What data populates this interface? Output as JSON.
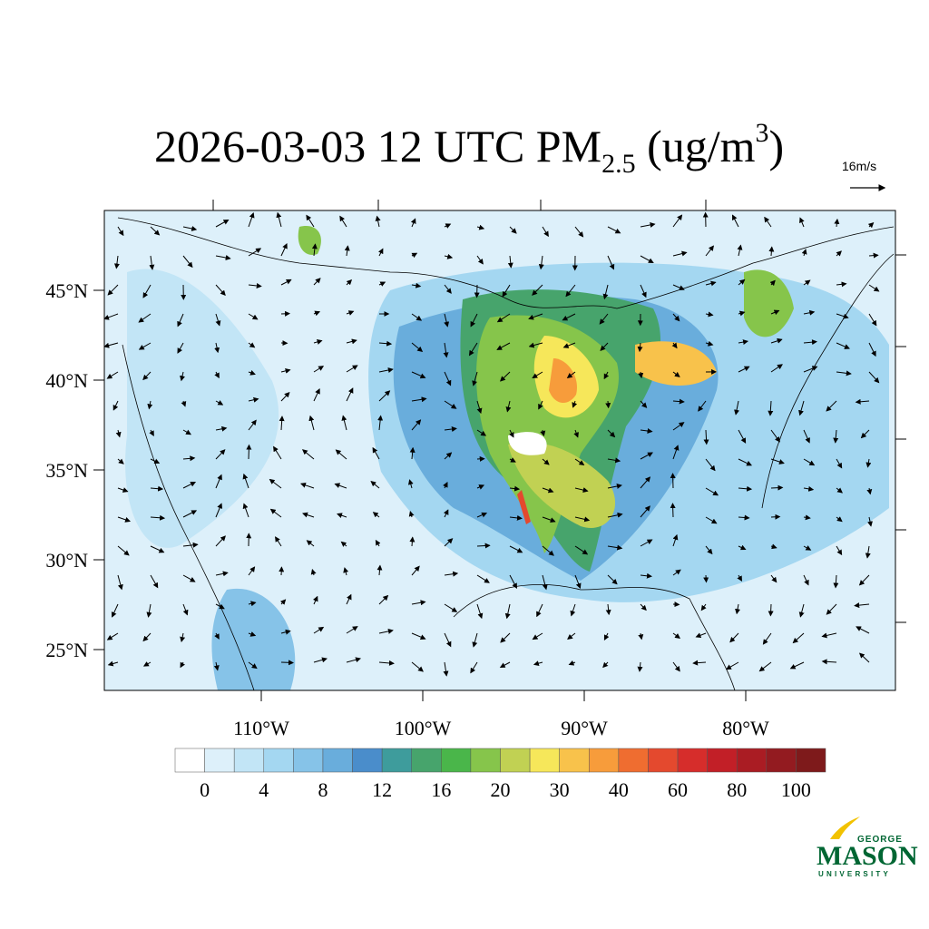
{
  "map": {
    "title": {
      "main": "2026-03-03 12 UTC PM",
      "subscript": "2.5",
      "unit_open": " (ug/m",
      "superscript": "3",
      "unit_close": ")"
    },
    "reference_vector": "16m/s",
    "lon_ticks": [
      {
        "value": -110,
        "label": "110°W"
      },
      {
        "value": -100,
        "label": "100°W"
      },
      {
        "value": -90,
        "label": "90°W"
      },
      {
        "value": -80,
        "label": "80°W"
      }
    ],
    "lat_ticks": [
      {
        "value": 45,
        "label": "45°N"
      },
      {
        "value": 40,
        "label": "40°N"
      },
      {
        "value": 35,
        "label": "35°N"
      },
      {
        "value": 30,
        "label": "30°N"
      },
      {
        "value": 25,
        "label": "25°N"
      }
    ],
    "colorbar": {
      "ticks": [
        0,
        4,
        8,
        12,
        16,
        20,
        30,
        40,
        60,
        80,
        100
      ],
      "colors": [
        "#ffffff",
        "#ddf0fa",
        "#c2e5f6",
        "#a4d7f1",
        "#86c3e8",
        "#69addc",
        "#4a8dcb",
        "#3e9c9c",
        "#47a46c",
        "#4ab64a",
        "#86c54b",
        "#c1d153",
        "#f6e75a",
        "#f8c24b",
        "#f79c3b",
        "#ef6d30",
        "#e4492e",
        "#d62d2b",
        "#c21f27",
        "#aa1c23",
        "#931b20",
        "#7e1a1b"
      ]
    },
    "logo": {
      "top": "GEORGE",
      "name": "MASON",
      "bottom": "UNIVERSITY"
    }
  }
}
